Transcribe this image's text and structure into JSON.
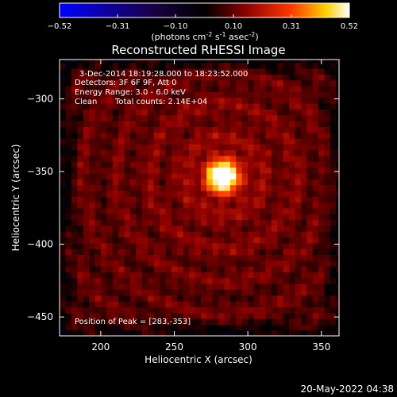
{
  "chart_data": {
    "type": "heatmap",
    "title": "Reconstructed RHESSI Image",
    "xlabel": "Heliocentric X (arcsec)",
    "ylabel": "Heliocentric Y (arcsec)",
    "xlim": [
      172,
      362
    ],
    "ylim": [
      -463,
      -273
    ],
    "xticks": [
      200,
      250,
      300,
      350
    ],
    "yticks": [
      -300,
      -350,
      -400,
      -450
    ],
    "colorbar": {
      "range": [
        -0.52,
        0.52
      ],
      "ticks": [
        "-0.52",
        "-0.31",
        "-0.10",
        "0.10",
        "0.31",
        "0.52"
      ],
      "unit_main": "(photons cm",
      "unit_exp1": "-2",
      "unit_mid": " s",
      "unit_exp2": "-1",
      "unit_mid2": " asec",
      "unit_exp3": "-2",
      "unit_close": ")",
      "colormap": "blue-black-red-yellow-white"
    },
    "info": {
      "line1": "3-Dec-2014 18:19:28.000 to 18:23:52.000",
      "line2": "Detectors: 3F 6F 9F, Att 0",
      "line3": "Energy Range: 3.0 - 6.0 keV",
      "line4_a": "Clean",
      "line4_b": "Total counts: 2.14E+04"
    },
    "peak_label": "Position of Peak = [283,-353]",
    "peak": {
      "x": 283,
      "y": -353,
      "value": 0.52
    },
    "timestamp": "20-May-2022 04:38"
  }
}
